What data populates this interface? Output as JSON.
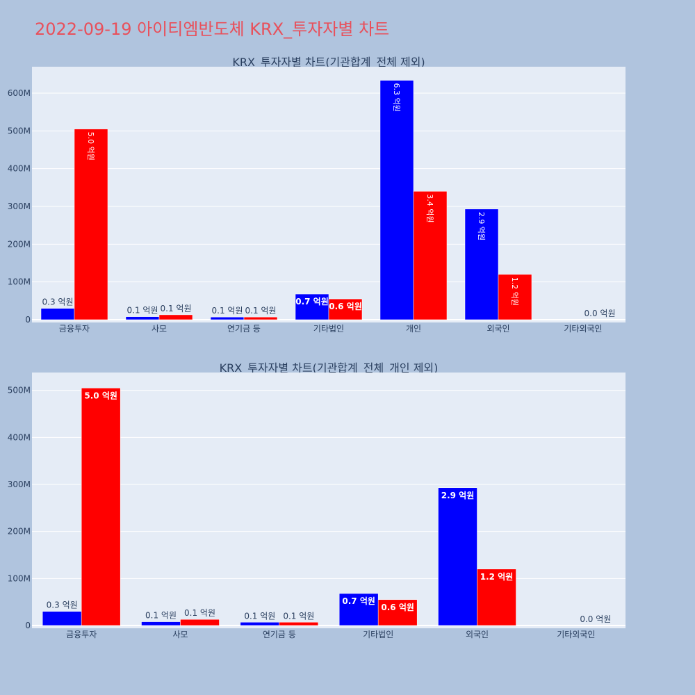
{
  "page_title": "2022-09-19 아이티엠반도체 KRX_투자자별 차트",
  "chart_data": [
    {
      "type": "bar",
      "title": "KRX_투자자별 차트(기관합계_전체 제외)",
      "categories": [
        "금융투자",
        "사모",
        "연기금 등",
        "기타법인",
        "개인",
        "외국인",
        "기타외국인"
      ],
      "ylim": [
        0,
        670000000
      ],
      "yticks": [
        0,
        100000000,
        200000000,
        300000000,
        400000000,
        500000000,
        600000000
      ],
      "ytick_labels": [
        "0",
        "100M",
        "200M",
        "300M",
        "400M",
        "500M",
        "600M"
      ],
      "grid": true,
      "series": [
        {
          "color": "#0000ff",
          "values": [
            30000000,
            8000000,
            7000000,
            68000000,
            634000000,
            293000000,
            0
          ],
          "labels": [
            "0.3 억원",
            "0.1 억원",
            "0.1 억원",
            "0.7 억원",
            "6.3 억원",
            "2.9 억원",
            ""
          ],
          "label_pos": [
            "outside",
            "outside",
            "outside",
            "inside",
            "inside-rot",
            "inside-rot",
            "outside"
          ]
        },
        {
          "color": "#ff0000",
          "values": [
            505000000,
            13000000,
            7000000,
            55000000,
            340000000,
            120000000,
            0
          ],
          "labels": [
            "5.0 억원",
            "0.1 억원",
            "0.1 억원",
            "0.6 억원",
            "3.4 억원",
            "1.2 억원",
            "0.0 억원"
          ],
          "label_pos": [
            "inside-rot",
            "outside",
            "outside",
            "inside",
            "inside-rot",
            "inside-rot",
            "outside"
          ]
        }
      ]
    },
    {
      "type": "bar",
      "title": "KRX_투자자별 차트(기관합계_전체_개인 제외)",
      "categories": [
        "금융투자",
        "사모",
        "연기금 등",
        "기타법인",
        "외국인",
        "기타외국인"
      ],
      "ylim": [
        0,
        538000000
      ],
      "yticks": [
        0,
        100000000,
        200000000,
        300000000,
        400000000,
        500000000
      ],
      "ytick_labels": [
        "0",
        "100M",
        "200M",
        "300M",
        "400M",
        "500M"
      ],
      "grid": true,
      "series": [
        {
          "color": "#0000ff",
          "values": [
            30000000,
            8000000,
            7000000,
            68000000,
            293000000,
            0
          ],
          "labels": [
            "0.3 억원",
            "0.1 억원",
            "0.1 억원",
            "0.7 억원",
            "2.9 억원",
            ""
          ],
          "label_pos": [
            "outside",
            "outside",
            "outside",
            "inside",
            "inside",
            "outside"
          ]
        },
        {
          "color": "#ff0000",
          "values": [
            505000000,
            13000000,
            7000000,
            55000000,
            120000000,
            0
          ],
          "labels": [
            "5.0 억원",
            "0.1 억원",
            "0.1 억원",
            "0.6 억원",
            "1.2 억원",
            "0.0 억원"
          ],
          "label_pos": [
            "inside",
            "outside",
            "outside",
            "inside",
            "inside",
            "outside"
          ]
        }
      ]
    }
  ]
}
